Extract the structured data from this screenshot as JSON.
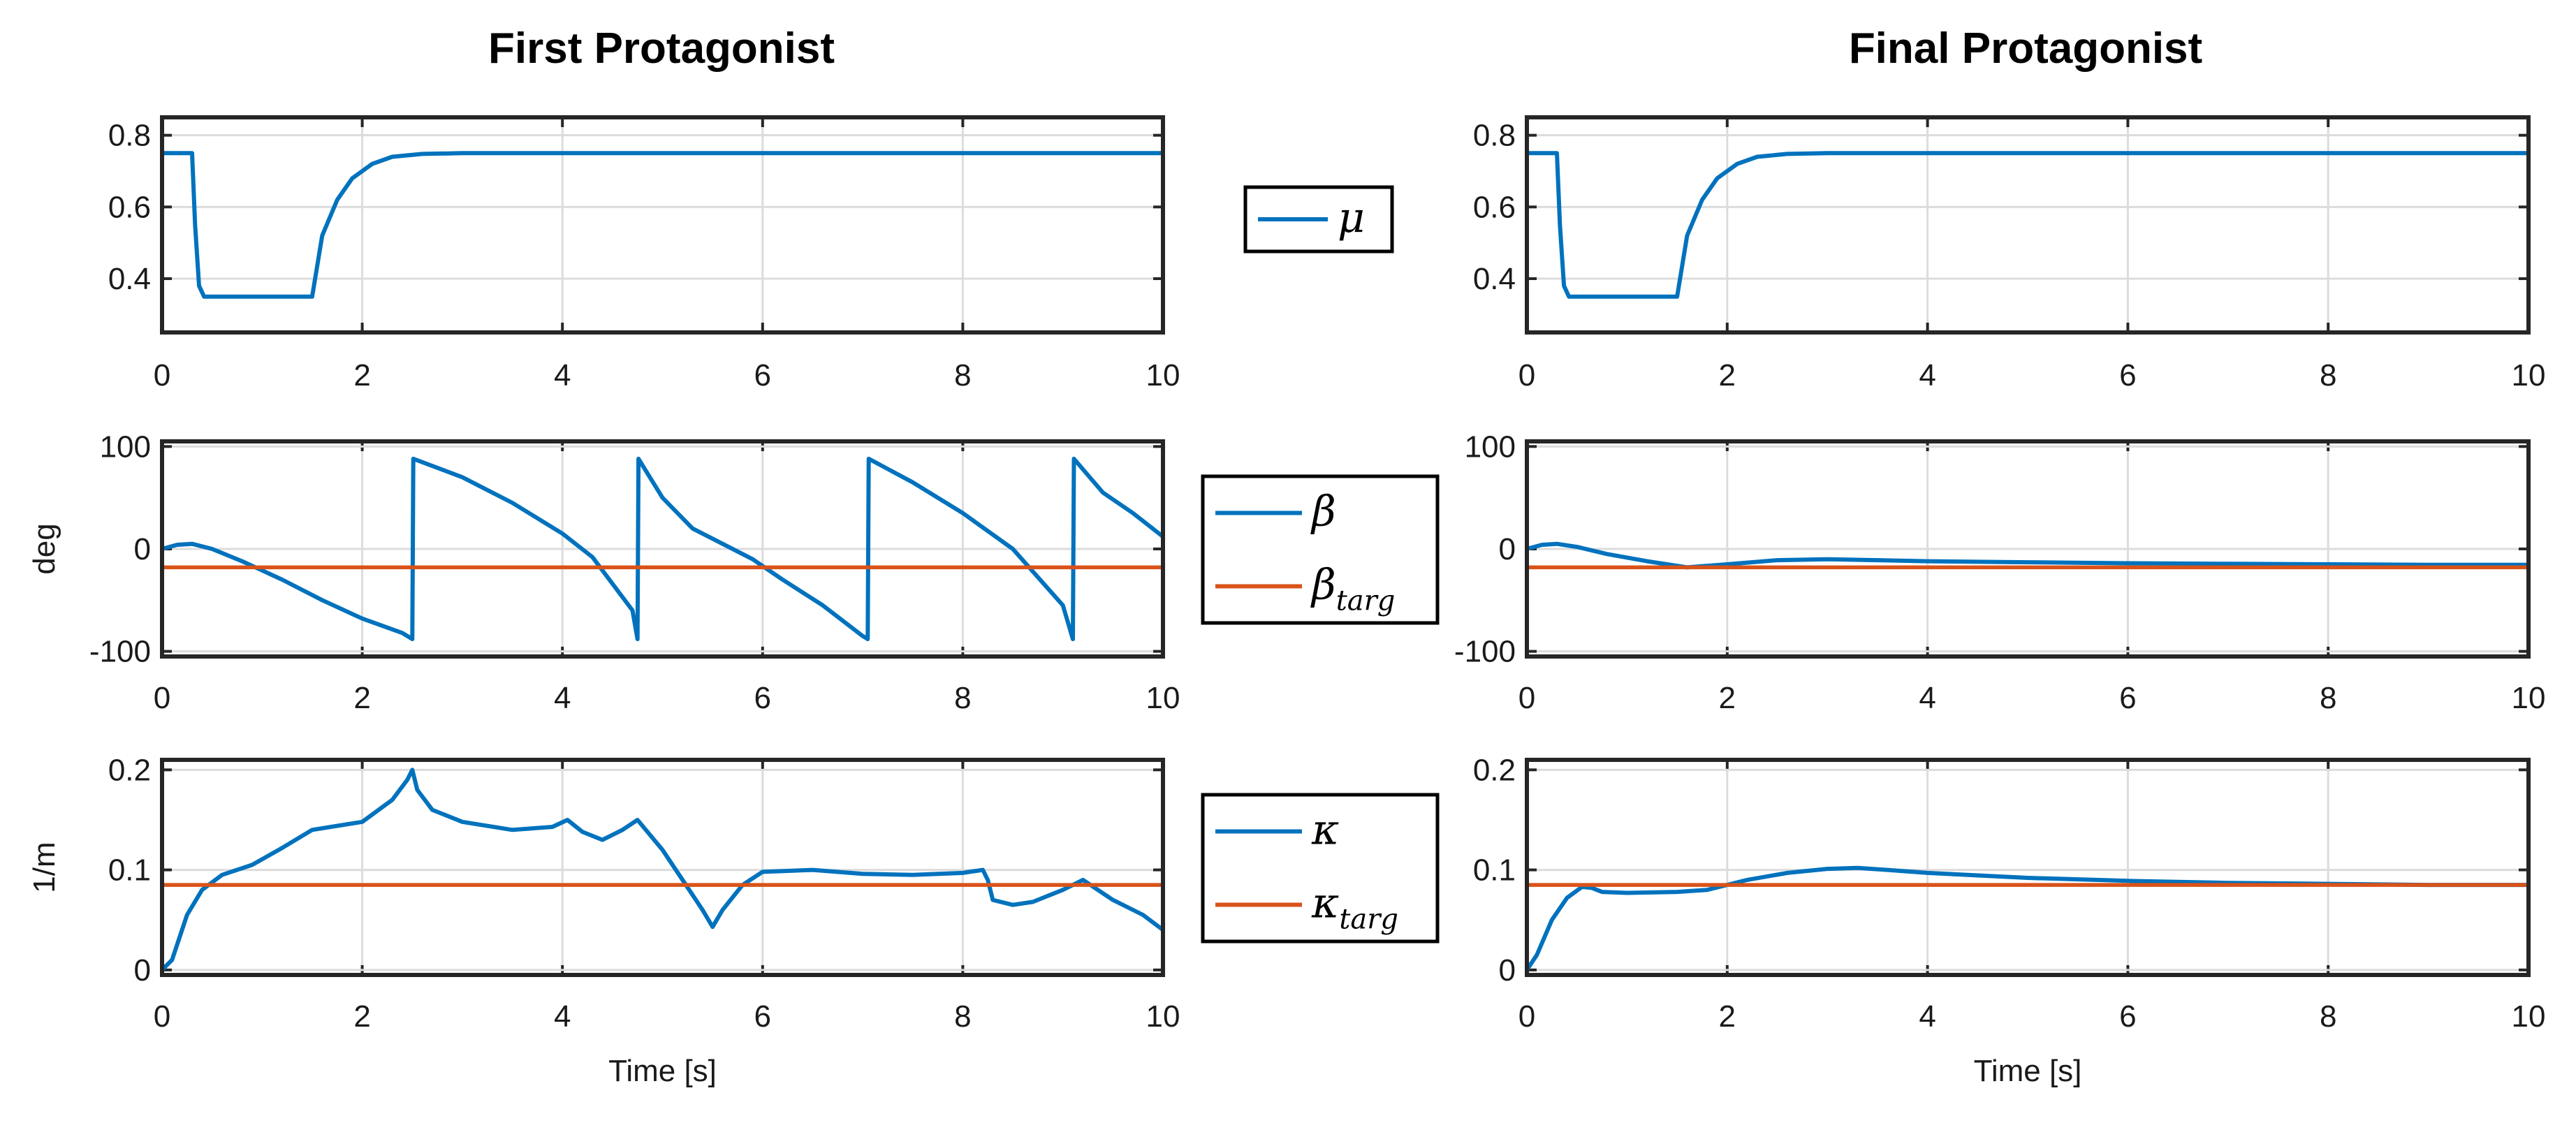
{
  "chart_data": [
    {
      "type": "line",
      "column_title": "First Protagonist",
      "xlabel": "",
      "ylabel": "",
      "xlim": [
        0,
        10
      ],
      "ylim": [
        0.25,
        0.85
      ],
      "xticks": [
        "0",
        "2",
        "4",
        "6",
        "8",
        "10"
      ],
      "yticks": [
        "0.4",
        "0.6",
        "0.8"
      ],
      "series": [
        {
          "name": "μ",
          "color": "#0072BD",
          "x": [
            0,
            0.3,
            0.33,
            0.37,
            0.42,
            1.5,
            1.6,
            1.75,
            1.9,
            2.1,
            2.3,
            2.6,
            3.0,
            10
          ],
          "y": [
            0.75,
            0.75,
            0.55,
            0.38,
            0.35,
            0.35,
            0.52,
            0.62,
            0.68,
            0.72,
            0.74,
            0.748,
            0.75,
            0.75
          ]
        }
      ]
    },
    {
      "type": "line",
      "column_title": "First Protagonist",
      "xlabel": "",
      "ylabel": "deg",
      "xlim": [
        0,
        10
      ],
      "ylim": [
        -105,
        105
      ],
      "xticks": [
        "0",
        "2",
        "4",
        "6",
        "8",
        "10"
      ],
      "yticks": [
        "-100",
        "0",
        "100"
      ],
      "series": [
        {
          "name": "β",
          "color": "#0072BD",
          "x": [
            0,
            0.15,
            0.3,
            0.5,
            0.8,
            1.2,
            1.6,
            2.0,
            2.4,
            2.5,
            2.51,
            3.0,
            3.5,
            4.0,
            4.3,
            4.7,
            4.75,
            4.76,
            5.0,
            5.3,
            5.6,
            5.9,
            6.2,
            6.6,
            7.0,
            7.05,
            7.06,
            7.5,
            8.0,
            8.5,
            9.0,
            9.1,
            9.11,
            9.4,
            9.7,
            10
          ],
          "y": [
            0,
            4,
            5,
            0,
            -12,
            -30,
            -50,
            -68,
            -82,
            -88,
            88,
            70,
            45,
            15,
            -8,
            -60,
            -88,
            88,
            50,
            20,
            5,
            -10,
            -30,
            -55,
            -85,
            -88,
            88,
            65,
            35,
            0,
            -55,
            -88,
            88,
            55,
            35,
            12
          ]
        },
        {
          "name": "β_targ",
          "color": "#D95319",
          "x": [
            0,
            10
          ],
          "y": [
            -18,
            -18
          ]
        }
      ]
    },
    {
      "type": "line",
      "column_title": "First Protagonist",
      "xlabel": "Time [s]",
      "ylabel": "1/m",
      "xlim": [
        0,
        10
      ],
      "ylim": [
        -0.005,
        0.21
      ],
      "xticks": [
        "0",
        "2",
        "4",
        "6",
        "8",
        "10"
      ],
      "yticks": [
        "0",
        "0.1",
        "0.2"
      ],
      "series": [
        {
          "name": "κ",
          "color": "#0072BD",
          "x": [
            0,
            0.1,
            0.25,
            0.4,
            0.6,
            0.9,
            1.2,
            1.5,
            2.0,
            2.3,
            2.45,
            2.5,
            2.55,
            2.7,
            3.0,
            3.5,
            3.9,
            4.05,
            4.2,
            4.4,
            4.6,
            4.75,
            5.0,
            5.2,
            5.4,
            5.5,
            5.6,
            5.8,
            6.0,
            6.5,
            7.0,
            7.5,
            8.0,
            8.2,
            8.25,
            8.3,
            8.5,
            8.7,
            9.0,
            9.2,
            9.5,
            9.8,
            10
          ],
          "y": [
            0,
            0.01,
            0.055,
            0.08,
            0.095,
            0.105,
            0.122,
            0.14,
            0.148,
            0.17,
            0.19,
            0.2,
            0.18,
            0.16,
            0.148,
            0.14,
            0.143,
            0.15,
            0.138,
            0.13,
            0.14,
            0.15,
            0.12,
            0.09,
            0.06,
            0.043,
            0.06,
            0.085,
            0.098,
            0.1,
            0.096,
            0.095,
            0.097,
            0.1,
            0.09,
            0.07,
            0.065,
            0.068,
            0.08,
            0.09,
            0.07,
            0.055,
            0.04
          ]
        },
        {
          "name": "κ_targ",
          "color": "#D95319",
          "x": [
            0,
            10
          ],
          "y": [
            0.085,
            0.085
          ]
        }
      ]
    },
    {
      "type": "line",
      "column_title": "Final Protagonist",
      "xlabel": "",
      "ylabel": "",
      "xlim": [
        0,
        10
      ],
      "ylim": [
        0.25,
        0.85
      ],
      "xticks": [
        "0",
        "2",
        "4",
        "6",
        "8",
        "10"
      ],
      "yticks": [
        "0.4",
        "0.6",
        "0.8"
      ],
      "series": [
        {
          "name": "μ",
          "color": "#0072BD",
          "x": [
            0,
            0.3,
            0.33,
            0.37,
            0.42,
            1.5,
            1.6,
            1.75,
            1.9,
            2.1,
            2.3,
            2.6,
            3.0,
            10
          ],
          "y": [
            0.75,
            0.75,
            0.55,
            0.38,
            0.35,
            0.35,
            0.52,
            0.62,
            0.68,
            0.72,
            0.74,
            0.748,
            0.75,
            0.75
          ]
        }
      ]
    },
    {
      "type": "line",
      "column_title": "Final Protagonist",
      "xlabel": "",
      "ylabel": "",
      "xlim": [
        0,
        10
      ],
      "ylim": [
        -105,
        105
      ],
      "xticks": [
        "0",
        "2",
        "4",
        "6",
        "8",
        "10"
      ],
      "yticks": [
        "-100",
        "0",
        "100"
      ],
      "series": [
        {
          "name": "β",
          "color": "#0072BD",
          "x": [
            0,
            0.15,
            0.3,
            0.5,
            0.8,
            1.2,
            1.6,
            2.0,
            2.5,
            3.0,
            3.5,
            4.0,
            5.0,
            6.0,
            7.0,
            8.0,
            9.0,
            10
          ],
          "y": [
            0,
            4,
            5,
            2,
            -5,
            -12,
            -18,
            -15,
            -11,
            -10,
            -11,
            -12,
            -13,
            -14,
            -14.5,
            -15,
            -15.5,
            -15.5
          ]
        },
        {
          "name": "β_targ",
          "color": "#D95319",
          "x": [
            0,
            10
          ],
          "y": [
            -18,
            -18
          ]
        }
      ]
    },
    {
      "type": "line",
      "column_title": "Final Protagonist",
      "xlabel": "Time [s]",
      "ylabel": "",
      "xlim": [
        0,
        10
      ],
      "ylim": [
        -0.005,
        0.21
      ],
      "xticks": [
        "0",
        "2",
        "4",
        "6",
        "8",
        "10"
      ],
      "yticks": [
        "0",
        "0.1",
        "0.2"
      ],
      "series": [
        {
          "name": "κ",
          "color": "#0072BD",
          "x": [
            0,
            0.1,
            0.25,
            0.4,
            0.55,
            0.65,
            0.75,
            1.0,
            1.5,
            1.8,
            2.2,
            2.6,
            3.0,
            3.3,
            3.6,
            4.0,
            5.0,
            6.0,
            7.0,
            8.0,
            9.0,
            10
          ],
          "y": [
            0,
            0.015,
            0.05,
            0.072,
            0.083,
            0.082,
            0.078,
            0.077,
            0.078,
            0.08,
            0.09,
            0.097,
            0.101,
            0.102,
            0.1,
            0.097,
            0.092,
            0.089,
            0.087,
            0.086,
            0.085,
            0.085
          ]
        },
        {
          "name": "κ_targ",
          "color": "#D95319",
          "x": [
            0,
            10
          ],
          "y": [
            0.085,
            0.085
          ]
        }
      ]
    }
  ],
  "titles": {
    "left": "First Protagonist",
    "right": "Final Protagonist"
  },
  "legends": [
    {
      "entries": [
        {
          "symbol": "μ",
          "subscript": "",
          "color": "#0072BD"
        }
      ]
    },
    {
      "entries": [
        {
          "symbol": "β",
          "subscript": "",
          "color": "#0072BD"
        },
        {
          "symbol": "β",
          "subscript": "targ",
          "color": "#D95319"
        }
      ]
    },
    {
      "entries": [
        {
          "symbol": "κ",
          "subscript": "",
          "color": "#0072BD"
        },
        {
          "symbol": "κ",
          "subscript": "targ",
          "color": "#D95319"
        }
      ]
    }
  ]
}
